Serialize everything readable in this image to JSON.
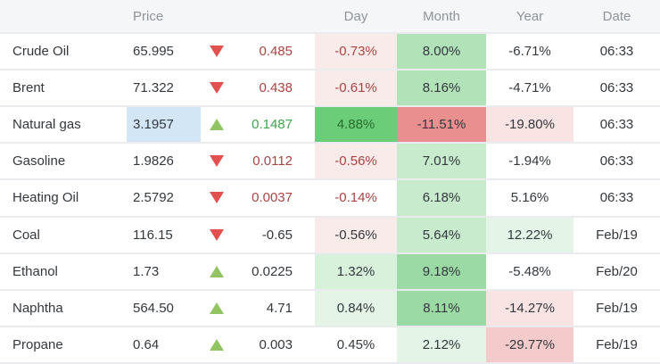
{
  "palette": {
    "text": "#33383d",
    "header-text": "#8d939b",
    "header-bg": "#f5f6f7",
    "border": "#e9ebee",
    "red-text": "#a94442",
    "green-text": "#3fa54c",
    "darkgreen-text": "#266c2c",
    "arrow-red": "#e0514f",
    "arrow-green": "#93c464",
    "blue-price": "#d2e6f5",
    "green-strong": "#6ccd79",
    "green-med": "#9bdaa4",
    "green-soft": "#b1e2b8",
    "green-light": "#c7ebcc",
    "green-lighter": "#d7f1db",
    "green-faint": "#e4f5e7",
    "red-strong": "#e98f8f",
    "red-med": "#f4caca",
    "red-light": "#f9e3e3",
    "red-faint": "#faebeb"
  },
  "table": {
    "headers": {
      "instrument": "",
      "price": "Price",
      "day": "Day",
      "month": "Month",
      "year": "Year",
      "date": "Date"
    },
    "rows": [
      {
        "name": "Crude Oil",
        "price": {
          "text": "65.995"
        },
        "arrow": "down",
        "change": {
          "text": "0.485",
          "color": "red-text"
        },
        "day": {
          "text": "-0.73%",
          "color": "red-text",
          "bg": "red-faint"
        },
        "month": {
          "text": "8.00%",
          "bg": "green-soft"
        },
        "year": {
          "text": "-6.71%"
        },
        "date": "06:33"
      },
      {
        "name": "Brent",
        "price": {
          "text": "71.322"
        },
        "arrow": "down",
        "change": {
          "text": "0.438",
          "color": "red-text"
        },
        "day": {
          "text": "-0.61%",
          "color": "red-text",
          "bg": "red-faint"
        },
        "month": {
          "text": "8.16%",
          "bg": "green-soft"
        },
        "year": {
          "text": "-4.71%"
        },
        "date": "06:33"
      },
      {
        "name": "Natural gas",
        "price": {
          "text": "3.1957",
          "bg": "blue-price"
        },
        "arrow": "up",
        "change": {
          "text": "0.1487",
          "color": "green-text"
        },
        "day": {
          "text": "4.88%",
          "color": "darkgreen-text",
          "bg": "green-strong"
        },
        "month": {
          "text": "-11.51%",
          "bg": "red-strong"
        },
        "year": {
          "text": "-19.80%",
          "bg": "red-light"
        },
        "date": "06:33"
      },
      {
        "name": "Gasoline",
        "price": {
          "text": "1.9826"
        },
        "arrow": "down",
        "change": {
          "text": "0.0112",
          "color": "red-text"
        },
        "day": {
          "text": "-0.56%",
          "color": "red-text",
          "bg": "red-faint"
        },
        "month": {
          "text": "7.01%",
          "bg": "green-light"
        },
        "year": {
          "text": "-1.94%"
        },
        "date": "06:33"
      },
      {
        "name": "Heating Oil",
        "price": {
          "text": "2.5792"
        },
        "arrow": "down",
        "change": {
          "text": "0.0037",
          "color": "red-text"
        },
        "day": {
          "text": "-0.14%",
          "color": "red-text"
        },
        "month": {
          "text": "6.18%",
          "bg": "green-light"
        },
        "year": {
          "text": "5.16%"
        },
        "date": "06:33"
      },
      {
        "name": "Coal",
        "price": {
          "text": "116.15"
        },
        "arrow": "down",
        "change": {
          "text": "-0.65"
        },
        "day": {
          "text": "-0.56%",
          "bg": "red-faint"
        },
        "month": {
          "text": "5.64%",
          "bg": "green-light"
        },
        "year": {
          "text": "12.22%",
          "bg": "green-faint"
        },
        "date": "Feb/19"
      },
      {
        "name": "Ethanol",
        "price": {
          "text": "1.73"
        },
        "arrow": "up",
        "change": {
          "text": "0.0225"
        },
        "day": {
          "text": "1.32%",
          "bg": "green-lighter"
        },
        "month": {
          "text": "9.18%",
          "bg": "green-med"
        },
        "year": {
          "text": "-5.48%"
        },
        "date": "Feb/20"
      },
      {
        "name": "Naphtha",
        "price": {
          "text": "564.50"
        },
        "arrow": "up",
        "change": {
          "text": "4.71"
        },
        "day": {
          "text": "0.84%",
          "bg": "green-faint"
        },
        "month": {
          "text": "8.11%",
          "bg": "green-med"
        },
        "year": {
          "text": "-14.27%",
          "bg": "red-light"
        },
        "date": "Feb/19"
      },
      {
        "name": "Propane",
        "price": {
          "text": "0.64"
        },
        "arrow": "up",
        "change": {
          "text": "0.003"
        },
        "day": {
          "text": "0.45%"
        },
        "month": {
          "text": "2.12%",
          "bg": "green-faint"
        },
        "year": {
          "text": "-29.77%",
          "bg": "red-med"
        },
        "date": "Feb/19"
      }
    ]
  }
}
